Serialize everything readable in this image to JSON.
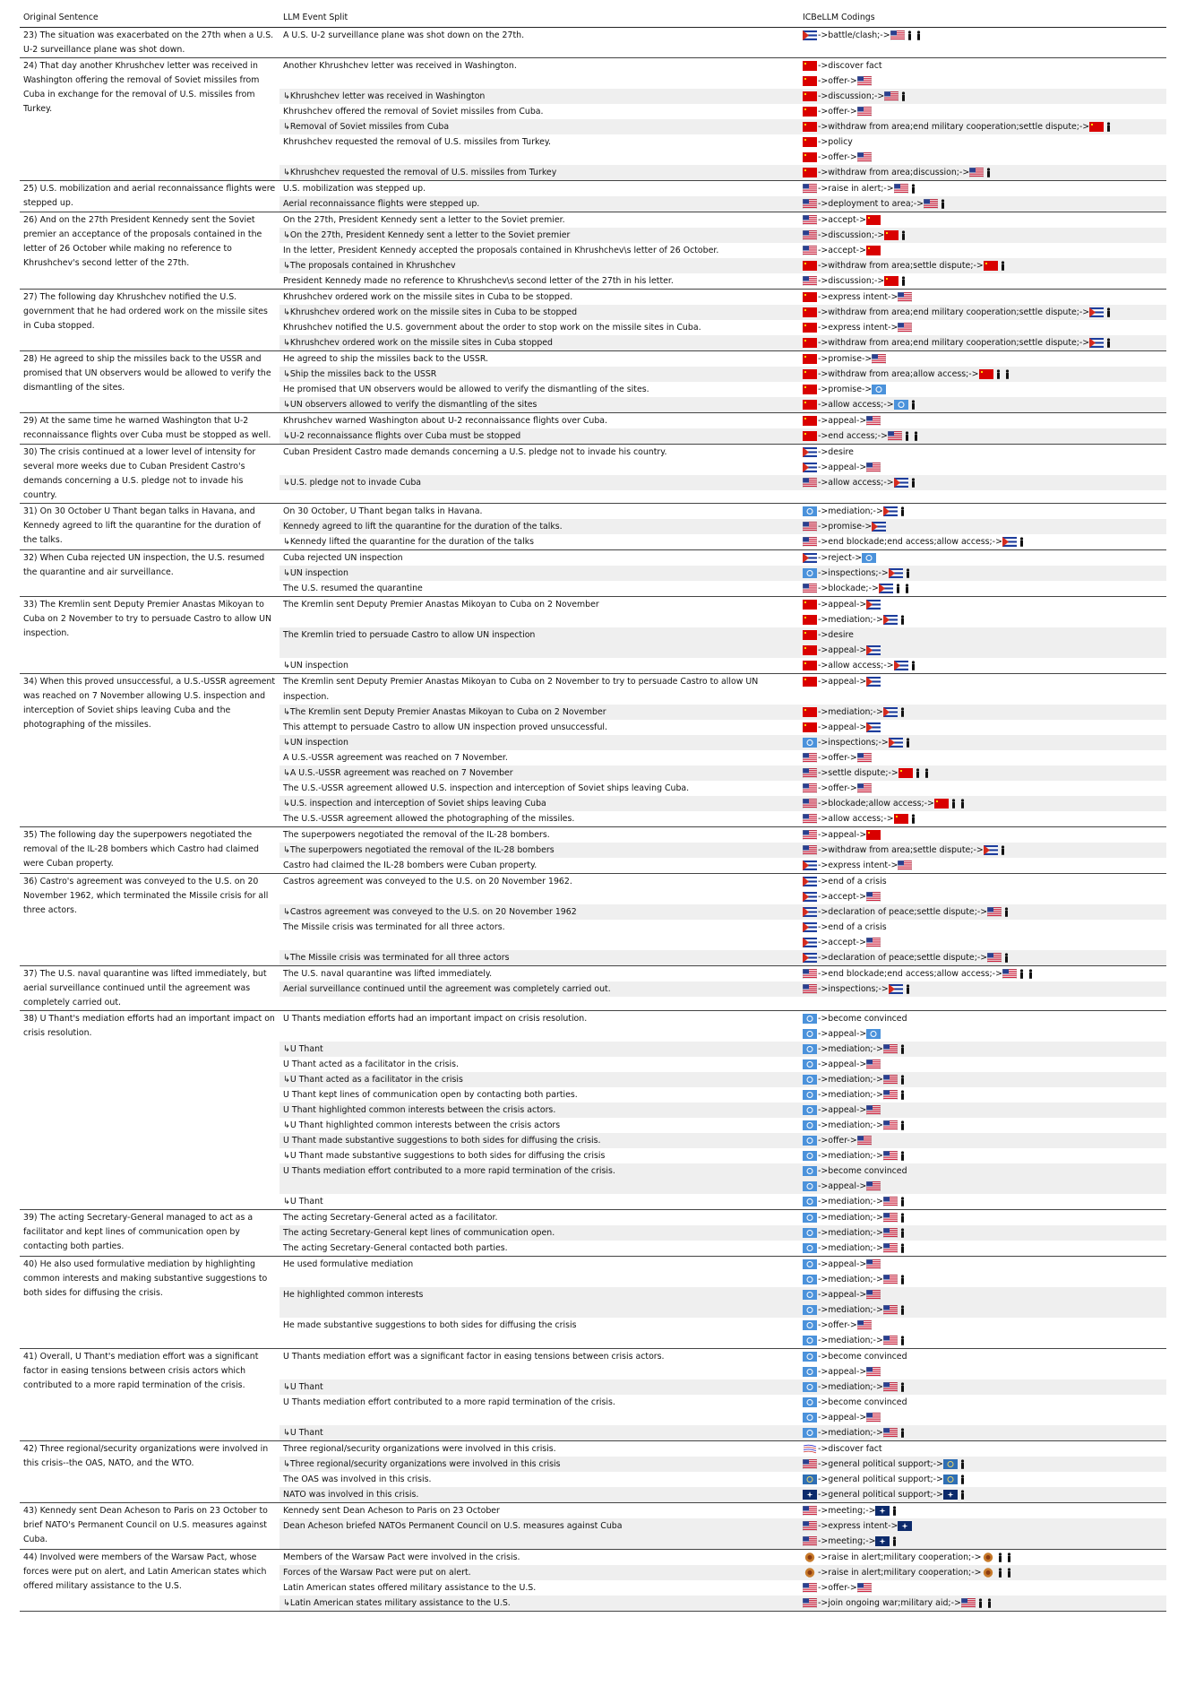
{
  "header": [
    "Original Sentence",
    "LLM Event Split",
    "ICBeLLM Codings"
  ],
  "rows": [
    {
      "sentence": "23) The situation was exacerbated on the 27th when a U.S. U-2 surveillance plane was shot down.",
      "events": [
        {
          "text": "A U.S. U-2 surveillance plane was shot down on the 27th.",
          "codings": [
            "->battle/clash;->"
          ]
        }
      ]
    },
    {
      "sentence": "24) That day another Khrushchev letter was received in Washington offering the removal of Soviet missiles from Cuba in exchange for the removal of U.S. missiles from Turkey.",
      "events": [
        {
          "text": "Another Khrushchev letter was received in Washington.",
          "codings": [
            "->discover fact",
            "->offer->"
          ]
        },
        {
          "text": "↳Khrushchev letter was received in Washington",
          "codings": [
            "->discussion;->"
          ]
        },
        {
          "text": "Khrushchev offered the removal of Soviet missiles from Cuba.",
          "codings": [
            "->offer->"
          ]
        },
        {
          "text": "↳Removal of Soviet missiles from Cuba",
          "codings": [
            "->withdraw from area;end military cooperation;settle dispute;->"
          ]
        },
        {
          "text": "Khrushchev requested the removal of U.S. missiles from Turkey.",
          "codings": [
            "->policy",
            "->offer->"
          ]
        },
        {
          "text": "↳Khrushchev requested the removal of U.S. missiles from Turkey",
          "codings": [
            "->withdraw from area;discussion;->"
          ]
        }
      ]
    },
    {
      "sentence": "25) U.S. mobilization and aerial reconnaissance flights were stepped up.",
      "events": [
        {
          "text": "U.S. mobilization was stepped up.",
          "codings": [
            "->raise in alert;->"
          ]
        },
        {
          "text": "Aerial reconnaissance flights were stepped up.",
          "codings": [
            "->deployment to area;->"
          ]
        }
      ]
    },
    {
      "sentence": "26) And on the 27th President Kennedy sent the Soviet premier an acceptance of the proposals contained in the letter of 26 October while making no reference to Khrushchev's second letter of the 27th.",
      "events": [
        {
          "text": "On the 27th, President Kennedy sent a letter to the Soviet premier.",
          "codings": [
            "->accept->"
          ]
        },
        {
          "text": "↳On the 27th, President Kennedy sent a letter to the Soviet premier",
          "codings": [
            "->discussion;->"
          ]
        },
        {
          "text": "In the letter, President Kennedy accepted the proposals contained in Khrushchev\\s letter of 26 October.",
          "codings": [
            "->accept->"
          ]
        },
        {
          "text": "↳The proposals contained in Khrushchev",
          "codings": [
            "->withdraw from area;settle dispute;->"
          ]
        },
        {
          "text": "President Kennedy made no reference to Khrushchev\\s second letter of the 27th in his letter.",
          "codings": [
            "->discussion;->"
          ]
        }
      ]
    },
    {
      "sentence": "27) The following day Khrushchev notified the U.S. government that he had ordered work on the missile sites in Cuba stopped.",
      "events": [
        {
          "text": "Khrushchev ordered work on the missile sites in Cuba to be stopped.",
          "codings": [
            "->express intent->"
          ]
        },
        {
          "text": "↳Khrushchev ordered work on the missile sites in Cuba to be stopped",
          "codings": [
            "->withdraw from area;end military cooperation;settle dispute;->"
          ]
        },
        {
          "text": "Khrushchev notified the U.S. government about the order to stop work on the missile sites in Cuba.",
          "codings": [
            "->express intent->"
          ]
        },
        {
          "text": "↳Khrushchev ordered work on the missile sites in Cuba stopped",
          "codings": [
            "->withdraw from area;end military cooperation;settle dispute;->"
          ]
        }
      ]
    },
    {
      "sentence": "28) He agreed to ship the missiles back to the USSR and promised that UN observers would be allowed to verify the dismantling of the sites.",
      "events": [
        {
          "text": "He agreed to ship the missiles back to the USSR.",
          "codings": [
            "->promise->"
          ]
        },
        {
          "text": "↳Ship the missiles back to the USSR",
          "codings": [
            "->withdraw from area;allow access;->"
          ]
        },
        {
          "text": "He promised that UN observers would be allowed to verify the dismantling of the sites.",
          "codings": [
            "->promise->"
          ]
        },
        {
          "text": "↳UN observers allowed to verify the dismantling of the sites",
          "codings": [
            "->allow access;->"
          ]
        }
      ]
    },
    {
      "sentence": "29) At the same time he warned Washington that U-2 reconnaissance flights over Cuba must be stopped as well.",
      "events": [
        {
          "text": "Khrushchev warned Washington about U-2 reconnaissance flights over Cuba.",
          "codings": [
            "->appeal->"
          ]
        },
        {
          "text": "↳U-2 reconnaissance flights over Cuba must be stopped",
          "codings": [
            "->end access;->"
          ]
        }
      ]
    },
    {
      "sentence": "30) The crisis continued at a lower level of intensity for several more weeks due to Cuban President Castro's demands concerning a U.S. pledge not to invade his country.",
      "events": [
        {
          "text": "Cuban President Castro made demands concerning a U.S. pledge not to invade his country.",
          "codings": [
            "->desire",
            "->appeal->"
          ]
        },
        {
          "text": "↳U.S. pledge not to invade Cuba",
          "codings": [
            "->allow access;->"
          ]
        }
      ]
    },
    {
      "sentence": "31) On 30 October U Thant began talks in Havana, and Kennedy agreed to lift the quarantine for the duration of the talks.",
      "events": [
        {
          "text": "On 30 October, U Thant began talks in Havana.",
          "codings": [
            "->mediation;->"
          ]
        },
        {
          "text": "Kennedy agreed to lift the quarantine for the duration of the talks.",
          "codings": [
            "->promise->"
          ]
        },
        {
          "text": "↳Kennedy lifted the quarantine for the duration of the talks",
          "codings": [
            "->end blockade;end access;allow access;->"
          ]
        }
      ]
    },
    {
      "sentence": "32) When Cuba rejected UN inspection, the U.S. resumed the quarantine and air surveillance.",
      "events": [
        {
          "text": "Cuba rejected UN inspection",
          "codings": [
            "->reject->"
          ]
        },
        {
          "text": "↳UN inspection",
          "codings": [
            "->inspections;->"
          ]
        },
        {
          "text": "The U.S. resumed the quarantine",
          "codings": [
            "->blockade;->"
          ]
        }
      ]
    },
    {
      "sentence": "33) The Kremlin sent Deputy Premier Anastas Mikoyan to Cuba on 2 November to try to persuade Castro to allow UN inspection.",
      "events": [
        {
          "text": "The Kremlin sent Deputy Premier Anastas Mikoyan to Cuba on 2 November",
          "codings": [
            "->appeal->",
            "->mediation;->"
          ]
        },
        {
          "text": "The Kremlin tried to persuade Castro to allow UN inspection",
          "codings": [
            "->desire",
            "->appeal->"
          ]
        },
        {
          "text": "↳UN inspection",
          "codings": [
            "->allow access;->"
          ]
        }
      ]
    },
    {
      "sentence": "34) When this proved unsuccessful, a U.S.-USSR agreement was reached on 7 November allowing U.S. inspection and interception of Soviet ships leaving Cuba and the photographing of the missiles.",
      "events": [
        {
          "text": "The Kremlin sent Deputy Premier Anastas Mikoyan to Cuba on 2 November to try to persuade Castro to allow UN inspection.",
          "codings": [
            "->appeal->"
          ]
        },
        {
          "text": "↳The Kremlin sent Deputy Premier Anastas Mikoyan to Cuba on 2 November",
          "codings": [
            "->mediation;->"
          ]
        },
        {
          "text": "This attempt to persuade Castro to allow UN inspection proved unsuccessful.",
          "codings": [
            "->appeal->"
          ]
        },
        {
          "text": "↳UN inspection",
          "codings": [
            "->inspections;->"
          ]
        },
        {
          "text": "A U.S.-USSR agreement was reached on 7 November.",
          "codings": [
            "->offer->"
          ]
        },
        {
          "text": "↳A U.S.-USSR agreement was reached on 7 November",
          "codings": [
            "->settle dispute;->"
          ]
        },
        {
          "text": "The U.S.-USSR agreement allowed U.S. inspection and interception of Soviet ships leaving Cuba.",
          "codings": [
            "->offer->"
          ]
        },
        {
          "text": "↳U.S. inspection and interception of Soviet ships leaving Cuba",
          "codings": [
            "->blockade;allow access;->"
          ]
        },
        {
          "text": "The U.S.-USSR agreement allowed the photographing of the missiles.",
          "codings": [
            "->allow access;->"
          ]
        }
      ]
    },
    {
      "sentence": "35) The following day the superpowers negotiated the removal of the IL-28 bombers which Castro had claimed were Cuban property.",
      "events": [
        {
          "text": "The superpowers negotiated the removal of the IL-28 bombers.",
          "codings": [
            "->appeal->"
          ]
        },
        {
          "text": "↳The superpowers negotiated the removal of the IL-28 bombers",
          "codings": [
            "->withdraw from area;settle dispute;->"
          ]
        },
        {
          "text": "Castro had claimed the IL-28 bombers were Cuban property.",
          "codings": [
            "->express intent->"
          ]
        }
      ]
    },
    {
      "sentence": "36) Castro's agreement was conveyed to the U.S. on 20 November 1962, which terminated the Missile crisis for all three actors.",
      "events": [
        {
          "text": "Castros agreement was conveyed to the U.S. on 20 November 1962.",
          "codings": [
            "->end of a crisis",
            "->accept->"
          ]
        },
        {
          "text": "↳Castros agreement was conveyed to the U.S. on 20 November 1962",
          "codings": [
            "->declaration of peace;settle dispute;->"
          ]
        },
        {
          "text": "The Missile crisis was terminated for all three actors.",
          "codings": [
            "->end of a crisis",
            "->accept->"
          ]
        },
        {
          "text": "↳The Missile crisis was terminated for all three actors",
          "codings": [
            "->declaration of peace;settle dispute;->"
          ]
        }
      ]
    },
    {
      "sentence": "37) The U.S. naval quarantine was lifted immediately, but aerial surveillance continued until the agreement was completely carried out.",
      "events": [
        {
          "text": "The U.S. naval quarantine was lifted immediately.",
          "codings": [
            "->end blockade;end access;allow access;->"
          ]
        },
        {
          "text": "Aerial surveillance continued until the agreement was completely carried out.",
          "codings": [
            "->inspections;->"
          ]
        }
      ]
    },
    {
      "sentence": "38) U Thant's mediation efforts had an important impact on crisis resolution.",
      "events": [
        {
          "text": "U Thants mediation efforts had an important impact on crisis resolution.",
          "codings": [
            "->become convinced",
            "->appeal->"
          ]
        },
        {
          "text": "↳U Thant",
          "codings": [
            "->mediation;->"
          ]
        },
        {
          "text": "U Thant acted as a facilitator in the crisis.",
          "codings": [
            "->appeal->"
          ]
        },
        {
          "text": "↳U Thant acted as a facilitator in the crisis",
          "codings": [
            "->mediation;->"
          ]
        },
        {
          "text": "U Thant kept lines of communication open by contacting both parties.",
          "codings": [
            "->mediation;->"
          ]
        },
        {
          "text": "U Thant highlighted common interests between the crisis actors.",
          "codings": [
            "->appeal->"
          ]
        },
        {
          "text": "↳U Thant highlighted common interests between the crisis actors",
          "codings": [
            "->mediation;->"
          ]
        },
        {
          "text": "U Thant made substantive suggestions to both sides for diffusing the crisis.",
          "codings": [
            "->offer->"
          ]
        },
        {
          "text": "↳U Thant made substantive suggestions to both sides for diffusing the crisis",
          "codings": [
            "->mediation;->"
          ]
        },
        {
          "text": "U Thants mediation effort contributed to a more rapid termination of the crisis.",
          "codings": [
            "->become convinced",
            "->appeal->"
          ]
        },
        {
          "text": "↳U Thant",
          "codings": [
            "->mediation;->"
          ]
        }
      ]
    },
    {
      "sentence": "39) The acting Secretary-General managed to act as a facilitator and kept lines of communication open by contacting both parties.",
      "events": [
        {
          "text": "The acting Secretary-General acted as a facilitator.",
          "codings": [
            "->mediation;->"
          ]
        },
        {
          "text": "The acting Secretary-General kept lines of communication open.",
          "codings": [
            "->mediation;->"
          ]
        },
        {
          "text": "The acting Secretary-General contacted both parties.",
          "codings": [
            "->mediation;->"
          ]
        }
      ]
    },
    {
      "sentence": "40) He also used formulative mediation by highlighting common interests and making substantive suggestions to both sides for diffusing the crisis.",
      "events": [
        {
          "text": "He used formulative mediation",
          "codings": [
            "->appeal->",
            "->mediation;->"
          ]
        },
        {
          "text": "He highlighted common interests",
          "codings": [
            "->appeal->",
            "->mediation;->"
          ]
        },
        {
          "text": "He made substantive suggestions to both sides for diffusing the crisis",
          "codings": [
            "->offer->",
            "->mediation;->"
          ]
        }
      ]
    },
    {
      "sentence": "41) Overall, U Thant's mediation effort was a significant factor in easing tensions between crisis actors which contributed to a more rapid termination of the crisis.",
      "events": [
        {
          "text": "U Thants mediation effort was a significant factor in easing tensions between crisis actors.",
          "codings": [
            "->become convinced",
            "->appeal->"
          ]
        },
        {
          "text": "↳U Thant",
          "codings": [
            "->mediation;->"
          ]
        },
        {
          "text": "U Thants mediation effort contributed to a more rapid termination of the crisis.",
          "codings": [
            "->become convinced",
            "->appeal->"
          ]
        },
        {
          "text": "↳U Thant",
          "codings": [
            "->mediation;->"
          ]
        }
      ]
    },
    {
      "sentence": "42) Three regional/security organizations were involved in this crisis--the OAS, NATO, and the WTO.",
      "events": [
        {
          "text": "Three regional/security organizations were involved in this crisis.",
          "codings": [
            "->discover fact"
          ]
        },
        {
          "text": "↳Three regional/security organizations were involved in this crisis",
          "codings": [
            "->general political support;->"
          ]
        },
        {
          "text": "The OAS was involved in this crisis.",
          "codings": [
            "->general political support;->"
          ]
        },
        {
          "text": "NATO was involved in this crisis.",
          "codings": [
            "->general political support;->"
          ]
        }
      ]
    },
    {
      "sentence": "43) Kennedy sent Dean Acheson to Paris on 23 October to brief NATO's Permanent Council on U.S. measures against Cuba.",
      "events": [
        {
          "text": "Kennedy sent Dean Acheson to Paris on 23 October",
          "codings": [
            "->meeting;->"
          ]
        },
        {
          "text": "Dean Acheson briefed NATOs Permanent Council on U.S. measures against Cuba",
          "codings": [
            "->express intent->",
            "->meeting;->"
          ]
        }
      ]
    },
    {
      "sentence": "44) Involved were members of the Warsaw Pact, whose forces were put on alert, and Latin American states which offered military assistance to the U.S.",
      "events": [
        {
          "text": "Members of the Warsaw Pact were involved in the crisis.",
          "codings": [
            "->raise in alert;military cooperation;->"
          ]
        },
        {
          "text": "Forces of the Warsaw Pact were put on alert.",
          "codings": [
            "->raise in alert;military cooperation;->"
          ]
        },
        {
          "text": "Latin American states offered military assistance to the U.S.",
          "codings": [
            "->offer->"
          ]
        },
        {
          "text": "↳Latin American states military assistance to the U.S.",
          "codings": [
            "->join ongoing war;military aid;->"
          ]
        }
      ]
    }
  ]
}
